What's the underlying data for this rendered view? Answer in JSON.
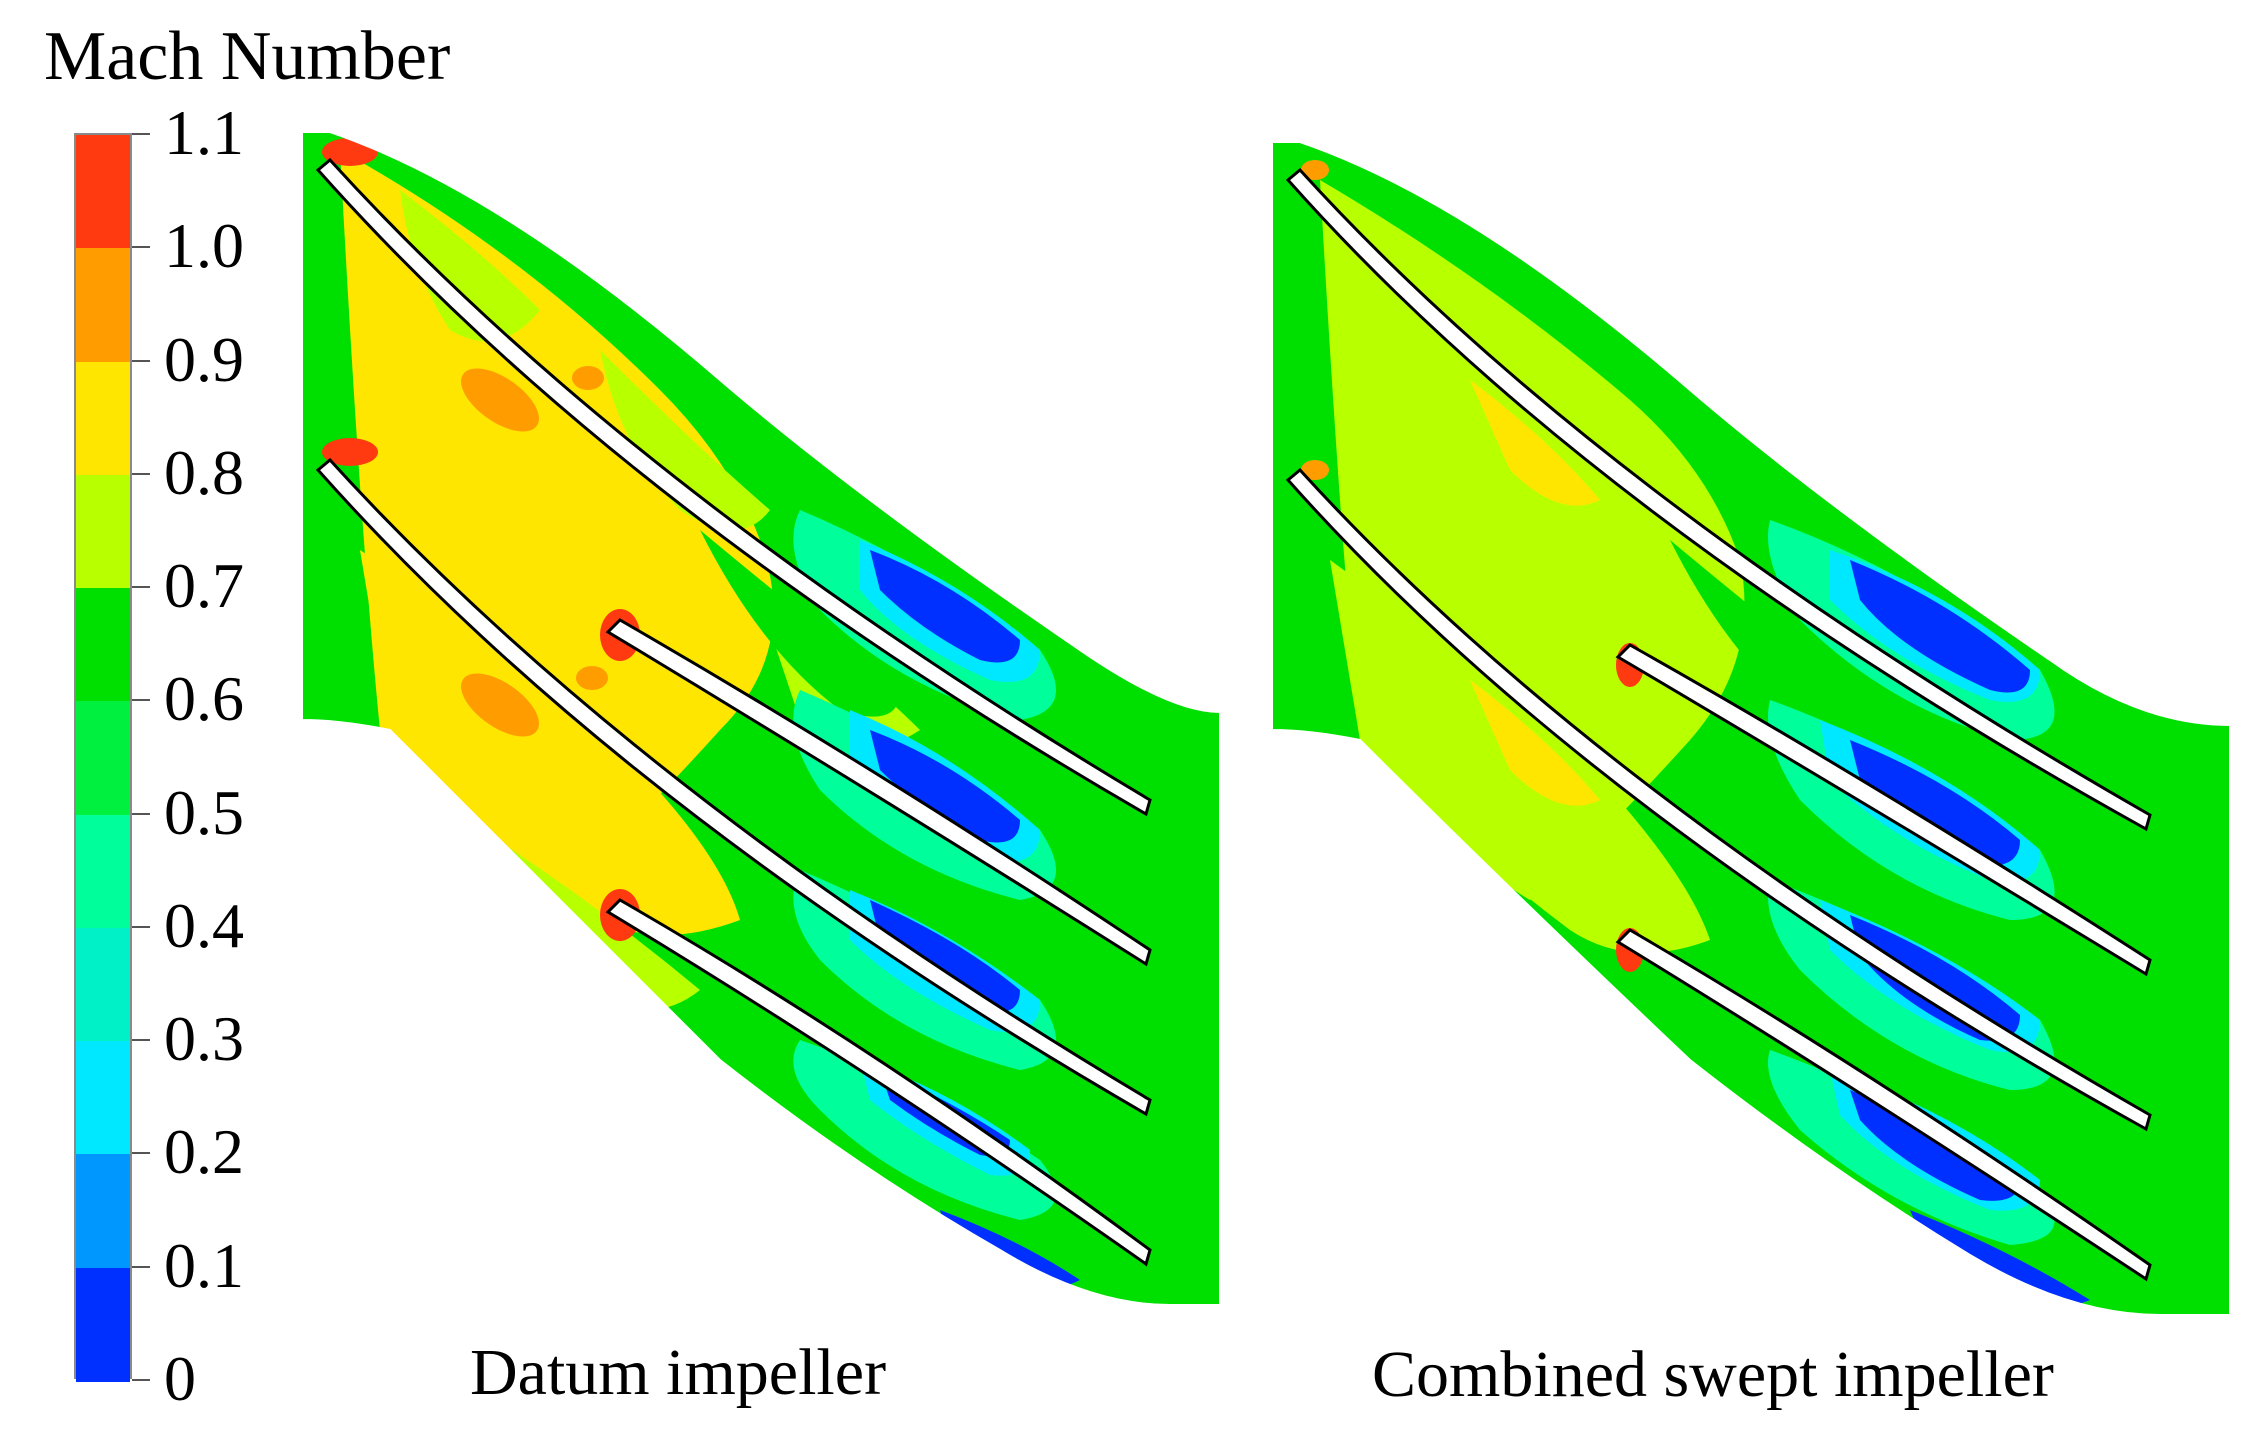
{
  "legend": {
    "title": "Mach Number",
    "ticks": [
      "1.1",
      "1.0",
      "0.9",
      "0.8",
      "0.7",
      "0.6",
      "0.5",
      "0.4",
      "0.3",
      "0.2",
      "0.1",
      "0"
    ],
    "bands": [
      {
        "range": "1.0-1.1",
        "color": "#ff3a10"
      },
      {
        "range": "0.9-1.0",
        "color": "#ff9c00"
      },
      {
        "range": "0.8-0.9",
        "color": "#ffe600"
      },
      {
        "range": "0.7-0.8",
        "color": "#b8ff00"
      },
      {
        "range": "0.6-0.7",
        "color": "#00e000"
      },
      {
        "range": "0.5-0.6",
        "color": "#00f040"
      },
      {
        "range": "0.4-0.5",
        "color": "#00ff9a"
      },
      {
        "range": "0.3-0.4",
        "color": "#00f0c8"
      },
      {
        "range": "0.2-0.3",
        "color": "#00e8ff"
      },
      {
        "range": "0.1-0.2",
        "color": "#0098ff"
      },
      {
        "range": "0-0.1",
        "color": "#0030ff"
      }
    ]
  },
  "panels": [
    {
      "caption": "Datum impeller"
    },
    {
      "caption": "Combined swept impeller"
    }
  ]
}
